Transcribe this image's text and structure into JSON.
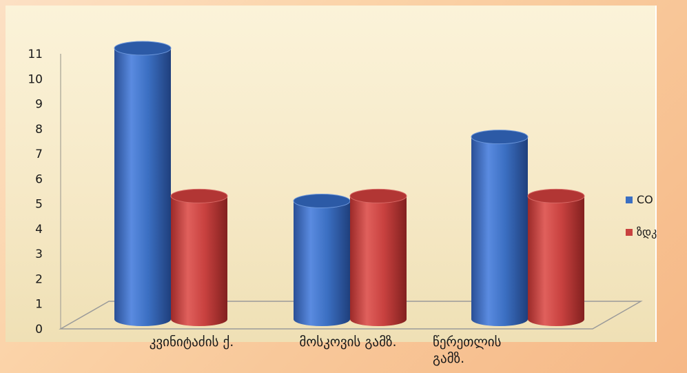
{
  "chart_data": {
    "type": "bar",
    "style": "3d-cylinder",
    "categories": [
      [
        "კვინიტაძის ქ."
      ],
      [
        "მოსკოვის გამზ."
      ],
      [
        "წერეთლის",
        "გამზ."
      ]
    ],
    "series": [
      {
        "name": "CO",
        "color": "#3b6fc2",
        "values": [
          11,
          4.8,
          7.4
        ]
      },
      {
        "name": "ზდკ",
        "color": "#c8413f",
        "values": [
          5,
          5,
          5
        ]
      }
    ],
    "ylim": [
      0,
      11
    ],
    "yticks": [
      0,
      1,
      2,
      3,
      4,
      5,
      6,
      7,
      8,
      9,
      10,
      11
    ],
    "legend": "right",
    "grid": false
  }
}
